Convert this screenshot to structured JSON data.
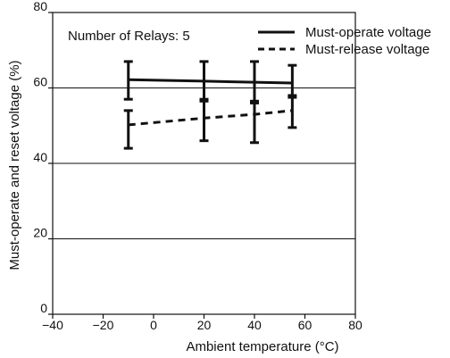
{
  "chart_data": {
    "type": "line",
    "title": "",
    "xlabel": "Ambient temperature (°C)",
    "ylabel": "Must-operate and reset voltage (%)",
    "annotation": "Number of Relays: 5",
    "xlim": [
      -40,
      80
    ],
    "ylim": [
      0,
      80
    ],
    "x_ticks": [
      -40,
      -20,
      0,
      20,
      40,
      60,
      80
    ],
    "x_tick_labels": [
      "−40",
      "−20",
      "0",
      "20",
      "40",
      "60",
      "80"
    ],
    "y_ticks": [
      0,
      20,
      40,
      60,
      80
    ],
    "y_tick_labels": [
      "0",
      "20",
      "40",
      "60",
      "80"
    ],
    "grid": "y",
    "legend_position": "top-right",
    "series": [
      {
        "name": "Must-operate voltage",
        "line_style": "solid",
        "x": [
          -10,
          20,
          40,
          55
        ],
        "y": [
          62.2,
          61.8,
          61.5,
          61.3
        ],
        "y_min": [
          57,
          57,
          56,
          57.5
        ],
        "y_max": [
          67,
          67,
          67,
          66
        ]
      },
      {
        "name": "Must-release voltage",
        "line_style": "dashed",
        "x": [
          -10,
          20,
          40,
          55
        ],
        "y": [
          50.2,
          52,
          53,
          54
        ],
        "y_min": [
          44,
          46,
          45.5,
          49.5
        ],
        "y_max": [
          54,
          56.5,
          56.5,
          58
        ]
      }
    ]
  }
}
